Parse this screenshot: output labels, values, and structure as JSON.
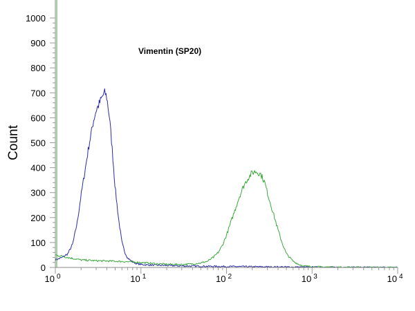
{
  "chart_data": {
    "type": "line",
    "title": "",
    "xlabel": "",
    "ylabel": "Count",
    "xscale": "log",
    "xlim": [
      1,
      10000
    ],
    "ylim": [
      0,
      1000
    ],
    "yticks": [
      0,
      100,
      200,
      300,
      400,
      500,
      600,
      700,
      800,
      900,
      1000
    ],
    "xticks": [
      {
        "value": 1,
        "base": "10",
        "exp": "0"
      },
      {
        "value": 10,
        "base": "10",
        "exp": "1"
      },
      {
        "value": 100,
        "base": "10",
        "exp": "2"
      },
      {
        "value": 1000,
        "base": "10",
        "exp": "3"
      },
      {
        "value": 10000,
        "base": "10",
        "exp": "4"
      }
    ],
    "annotation": "Vimentin (SP20)",
    "grid": false,
    "series": [
      {
        "color": "#2a2aa8",
        "x": [
          1.0,
          1.2,
          1.4,
          1.6,
          1.8,
          2.0,
          2.2,
          2.5,
          2.8,
          3.0,
          3.3,
          3.6,
          3.8,
          4.0,
          4.3,
          4.6,
          5.0,
          5.5,
          6.0,
          6.5,
          7.0,
          8.0,
          9.0,
          10,
          12,
          15,
          20,
          30,
          50,
          100,
          200,
          500,
          1000,
          10000
        ],
        "y": [
          30,
          40,
          55,
          95,
          180,
          290,
          380,
          500,
          590,
          630,
          660,
          690,
          700,
          680,
          600,
          480,
          320,
          190,
          100,
          60,
          38,
          22,
          15,
          12,
          10,
          9,
          8,
          6,
          5,
          4,
          3,
          2,
          1,
          0
        ]
      },
      {
        "color": "#3aa83a",
        "x": [
          1.0,
          1.2,
          1.5,
          2.0,
          3.0,
          5.0,
          8.0,
          10,
          15,
          20,
          30,
          40,
          50,
          60,
          70,
          80,
          90,
          100,
          120,
          140,
          160,
          180,
          200,
          220,
          250,
          280,
          300,
          350,
          400,
          450,
          500,
          600,
          700,
          800,
          1000,
          2000,
          10000
        ],
        "y": [
          50,
          45,
          38,
          30,
          27,
          25,
          22,
          20,
          15,
          13,
          12,
          14,
          18,
          25,
          40,
          60,
          90,
          130,
          210,
          280,
          330,
          360,
          380,
          385,
          375,
          340,
          300,
          220,
          150,
          95,
          55,
          25,
          12,
          6,
          3,
          1,
          0
        ]
      }
    ]
  }
}
